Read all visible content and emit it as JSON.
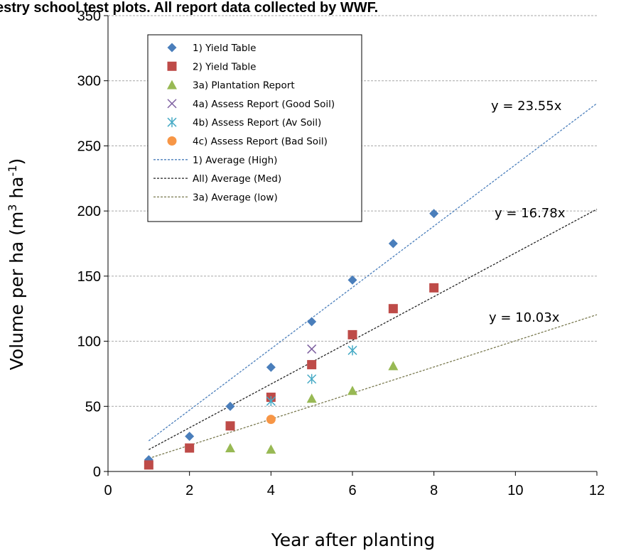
{
  "chart_data": {
    "type": "scatter",
    "title": "orestry school test plots. All report data collected by WWF.",
    "xlabel": "Year after planting",
    "ylabel": "Volume per ha (m3 ha-1)",
    "ylabel_parts": {
      "base": "Volume per ha (m",
      "sup1": "3",
      "mid": " ha",
      "sup2": "-1",
      "end": ")"
    },
    "xlim": [
      0,
      12
    ],
    "ylim": [
      0,
      350
    ],
    "xticks": [
      0,
      2,
      4,
      6,
      8,
      10,
      12
    ],
    "yticks": [
      0,
      50,
      100,
      150,
      200,
      250,
      300,
      350
    ],
    "grid": "horizontal",
    "legend_position": "top-left",
    "series": [
      {
        "name": "1) Yield Table",
        "marker": "diamond",
        "color": "#4a7ebb",
        "x": [
          1,
          2,
          3,
          4,
          5,
          6,
          7,
          8
        ],
        "y": [
          9,
          27,
          50,
          80,
          115,
          147,
          175,
          198
        ]
      },
      {
        "name": "2) Yield Table",
        "marker": "square",
        "color": "#be4b48",
        "x": [
          1,
          2,
          3,
          4,
          5,
          6,
          7,
          8
        ],
        "y": [
          5,
          18,
          35,
          57,
          82,
          105,
          125,
          141
        ]
      },
      {
        "name": "3a) Plantation  Report",
        "marker": "triangle",
        "color": "#98b954",
        "x": [
          3,
          4,
          5,
          6,
          7
        ],
        "y": [
          18,
          17,
          56,
          62,
          81
        ]
      },
      {
        "name": "4a) Assess Report (Good Soil)",
        "marker": "x",
        "color": "#7d60a0",
        "x": [
          5
        ],
        "y": [
          94
        ]
      },
      {
        "name": "4b) Assess Report (Av Soil)",
        "marker": "asterisk",
        "color": "#46aac5",
        "x": [
          4,
          5,
          6
        ],
        "y": [
          54,
          71,
          93
        ]
      },
      {
        "name": "4c) Assess Report (Bad Soil)",
        "marker": "circle",
        "color": "#f79646",
        "x": [
          4
        ],
        "y": [
          40
        ]
      }
    ],
    "trendlines": [
      {
        "name": "1) Average (High)",
        "slope": 23.55,
        "color": "#4a7ebb",
        "x_range": [
          1,
          12
        ],
        "equation": "y = 23.55x"
      },
      {
        "name": "All) Average (Med)",
        "slope": 16.78,
        "color": "#222222",
        "x_range": [
          1,
          12
        ],
        "equation": "y = 16.78x"
      },
      {
        "name": "3a) Average (low)",
        "slope": 10.03,
        "color": "#7a7a50",
        "x_range": [
          1,
          12
        ],
        "equation": "y = 10.03x"
      }
    ]
  }
}
